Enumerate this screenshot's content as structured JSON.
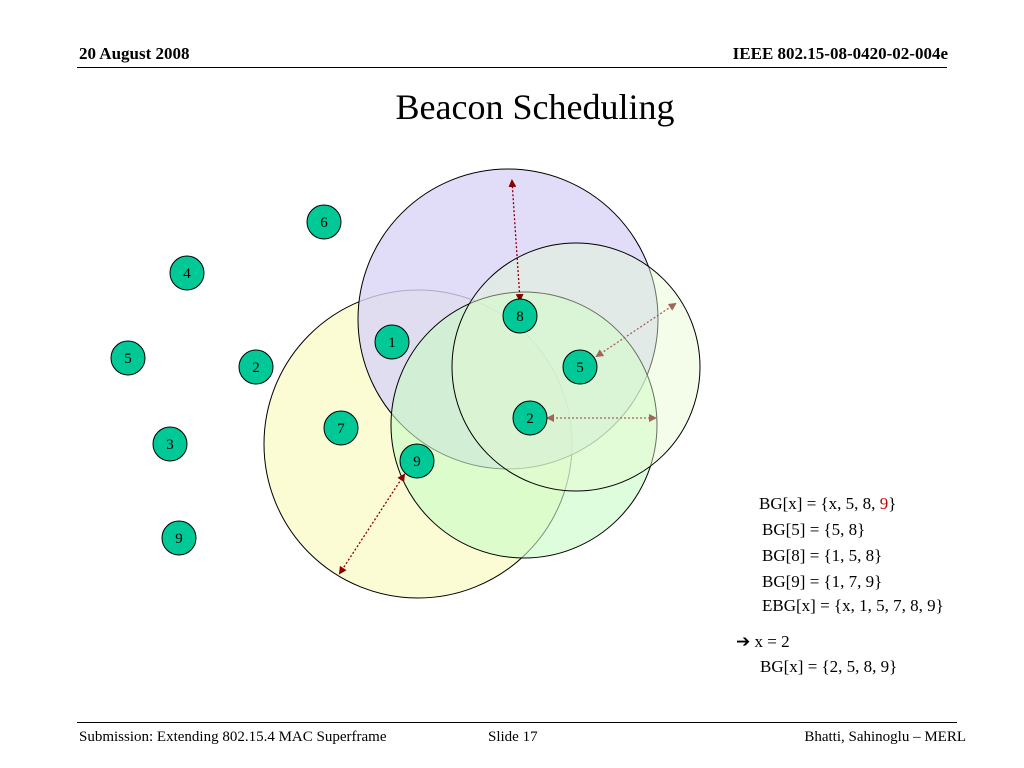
{
  "header": {
    "date": "20 August 2008",
    "doc_id": "IEEE 802.15-08-0420-02-004e"
  },
  "title": "Beacon Scheduling",
  "colors": {
    "node_fill": "#00c896",
    "circle_purple": "#d9d4f7",
    "circle_yellow": "#fbfbcd",
    "circle_green": "#c8fbc4",
    "circle_lightgreen": "#e4fbd0",
    "arrow_dark_red": "#8b0000",
    "arrow_muted": "#a0645a",
    "highlight_red": "#cc0000"
  },
  "nodes": [
    {
      "label": "6"
    },
    {
      "label": "4"
    },
    {
      "label": "5"
    },
    {
      "label": "2"
    },
    {
      "label": "3"
    },
    {
      "label": "9"
    },
    {
      "label": "1"
    },
    {
      "label": "7"
    },
    {
      "label": "9"
    },
    {
      "label": "8"
    },
    {
      "label": "5"
    },
    {
      "label": "2"
    }
  ],
  "bg_sets": {
    "line1_prefix": "BG[x] = {x, 5, 8, ",
    "line1_highlight": "9",
    "line1_suffix": "}",
    "line2": "BG[5] = {5, 8}",
    "line3": "BG[8] = {1, 5, 8}",
    "line4": "BG[9] = {1, 7, 9}",
    "line5": "EBG[x] = {x, 1, 5, 7, 8, 9}",
    "arrow_icon": "right-arrow-icon",
    "result": "x = 2",
    "final": "BG[x] = {2, 5, 8, 9}"
  },
  "footer": {
    "submission": "Submission: Extending 802.15.4 MAC Superframe",
    "slide": "Slide 17",
    "authors": "Bhatti, Sahinoglu –  MERL"
  }
}
